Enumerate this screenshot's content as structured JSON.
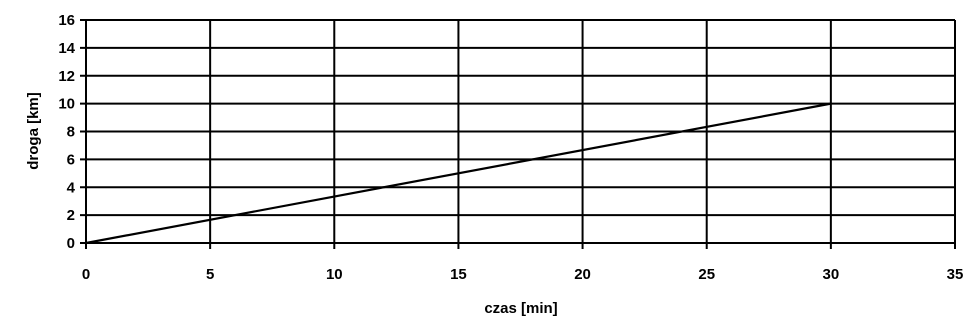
{
  "chart_data": {
    "type": "line",
    "title": "",
    "xlabel": "czas [min]",
    "ylabel": "droga [km]",
    "xlim": [
      0,
      35
    ],
    "ylim": [
      0,
      16
    ],
    "xticks": [
      0,
      5,
      10,
      15,
      20,
      25,
      30,
      35
    ],
    "yticks": [
      0,
      2,
      4,
      6,
      8,
      10,
      12,
      14,
      16
    ],
    "grid": true,
    "legend": "none",
    "series": [
      {
        "x": [
          0,
          30
        ],
        "y": [
          0,
          10
        ],
        "color": "#000000"
      }
    ]
  }
}
